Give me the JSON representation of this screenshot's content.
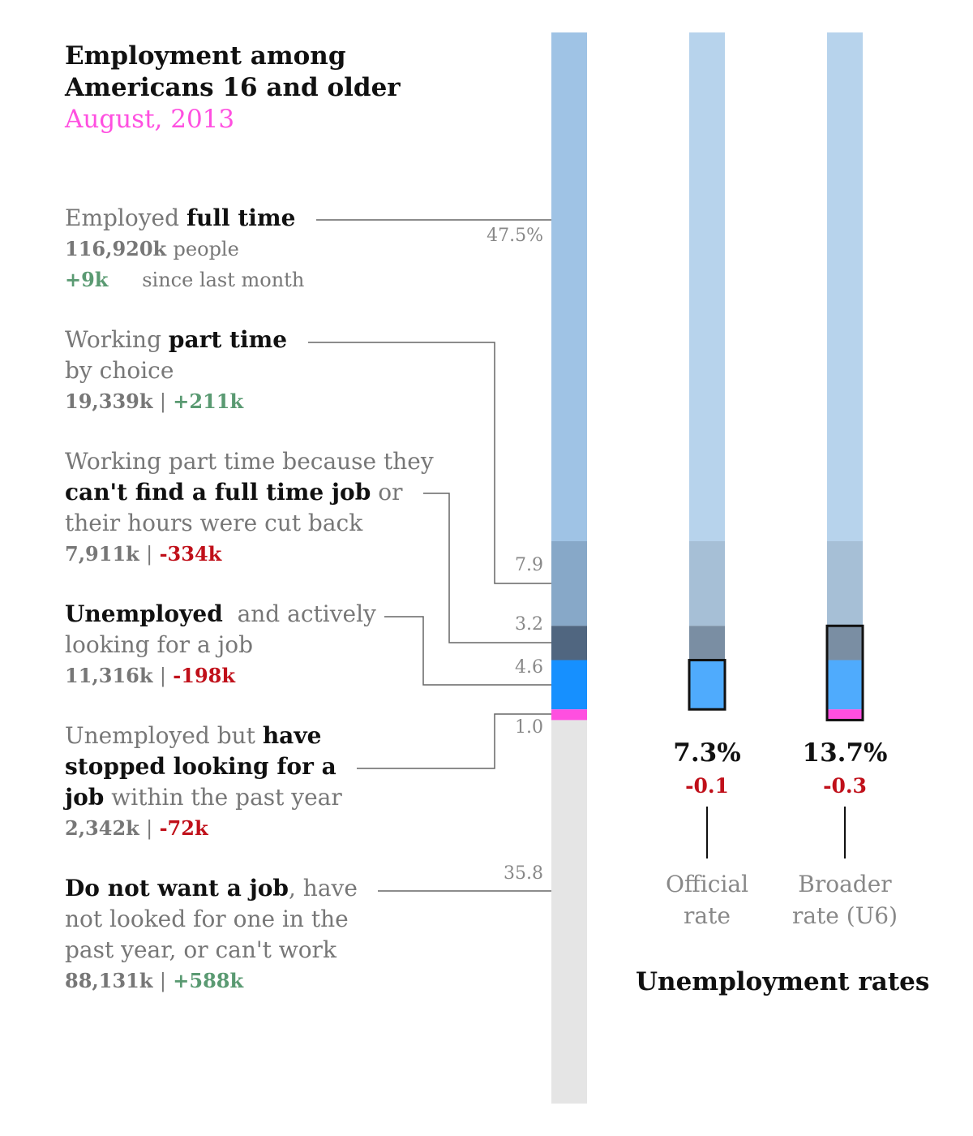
{
  "header": {
    "title_line1": "Employment among",
    "title_line2": "Americans 16 and older",
    "subtitle": "August, 2013"
  },
  "categories": [
    {
      "id": "full_time",
      "pre": "Employed ",
      "bold": "full time",
      "count": "116,920k",
      "count_suffix": "people",
      "change": "+9k",
      "change_suffix": "since last month"
    },
    {
      "id": "part_time_choice",
      "pre": "Working ",
      "bold": "part time",
      "line2": "by choice",
      "count": "19,339k",
      "sep": "|",
      "change": "+211k"
    },
    {
      "id": "part_time_econ",
      "line1": "Working part time because they",
      "bold": "can't find a full time job",
      "post": " or",
      "line3": "their hours were cut back",
      "count": "7,911k",
      "sep": "|",
      "change": "-334k"
    },
    {
      "id": "unemployed",
      "bold": "Unemployed",
      "post": "  and actively",
      "line2": "looking for a job",
      "count": "11,316k",
      "sep": "|",
      "change": "-198k"
    },
    {
      "id": "stopped_looking",
      "pre": "Unemployed but ",
      "bold1": "have",
      "bold2": "stopped looking for a",
      "bold3": "job",
      "post": " within the past year",
      "count": "2,342k",
      "sep": "|",
      "change": "-72k"
    },
    {
      "id": "not_want",
      "bold": "Do not want a job",
      "post": ", have",
      "line2": "not looked for one in the",
      "line3": "past year, or can't work",
      "count": "88,131k",
      "sep": "|",
      "change": "+588k"
    }
  ],
  "colors": {
    "full_time": "#9fc3e5",
    "part_time_choice": "#87a8c8",
    "part_time_econ": "#506680",
    "unemployed": "#1690ff",
    "stopped_looking": "#ff4fe0",
    "not_want": "#e5e5e5",
    "rate_full_time": "#b7d3ec",
    "rate_part_time_choice": "#a6bfd6",
    "rate_part_time_econ": "#7a8ea3",
    "rate_unemployed": "#4fabfd",
    "green": "#5a9a72",
    "red": "#c0101a",
    "accent": "#ff4fe0"
  },
  "chart_data": {
    "type": "bar",
    "orientation": "stacked-vertical",
    "unit": "percent of Americans 16 and older",
    "main_bar": {
      "segments": [
        {
          "category": "full_time",
          "value": 47.5,
          "label": "47.5%"
        },
        {
          "category": "part_time_choice",
          "value": 7.9,
          "label": "7.9"
        },
        {
          "category": "part_time_econ",
          "value": 3.2,
          "label": "3.2"
        },
        {
          "category": "unemployed",
          "value": 4.6,
          "label": "4.6"
        },
        {
          "category": "stopped_looking",
          "value": 1.0,
          "label": "1.0"
        },
        {
          "category": "not_want",
          "value": 35.8,
          "label": "35.8"
        }
      ]
    },
    "rates": [
      {
        "name_line1": "Official",
        "name_line2": "rate",
        "value": "7.3%",
        "change": "-0.1",
        "included": [
          "unemployed"
        ]
      },
      {
        "name_line1": "Broader",
        "name_line2": "rate (U6)",
        "value": "13.7%",
        "change": "-0.3",
        "included": [
          "part_time_econ",
          "unemployed",
          "stopped_looking"
        ]
      }
    ],
    "rates_title": "Unemployment rates"
  }
}
